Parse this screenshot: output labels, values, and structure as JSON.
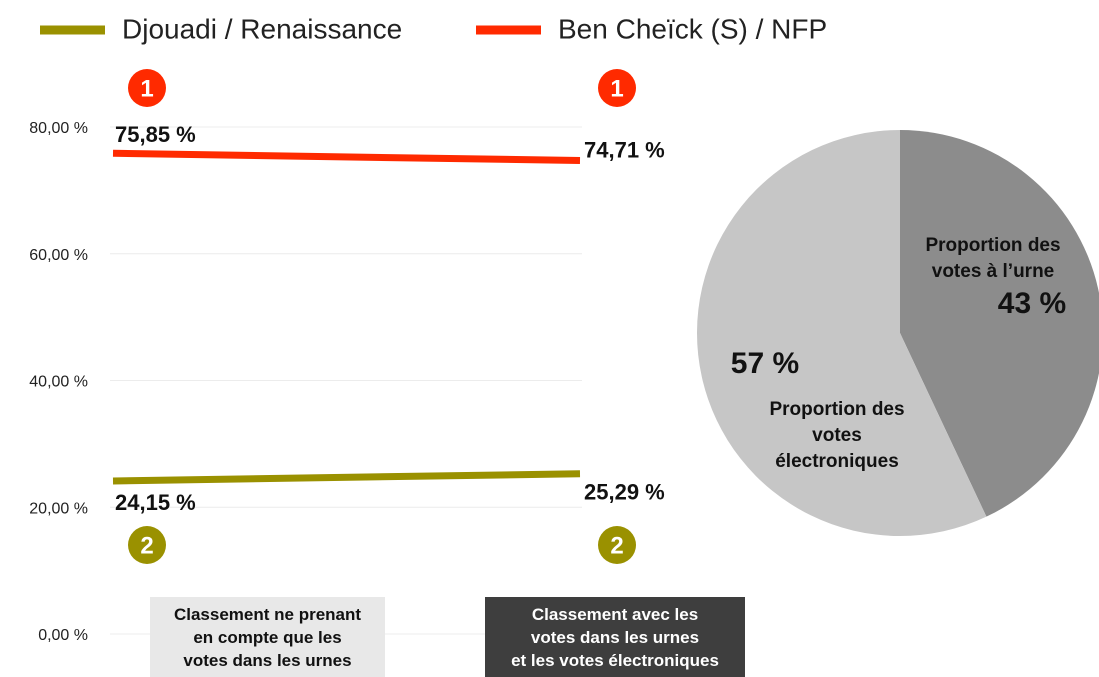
{
  "chart_data": [
    {
      "type": "line",
      "categories": [
        "Classement ne prenant\nen compte que les\nvotes dans les urnes",
        "Classement avec les\nvotes dans les urnes\net les votes électroniques"
      ],
      "series": [
        {
          "name": "Djouadi / Renaissance",
          "color": "#9a9100",
          "values": [
            24.15,
            25.29
          ],
          "value_labels": [
            "24,15 %",
            "25,29 %"
          ],
          "ranks": [
            2,
            2
          ]
        },
        {
          "name": "Ben Cheïck (S) / NFP",
          "color": "#ff2a00",
          "values": [
            75.85,
            74.71
          ],
          "value_labels": [
            "75,85 %",
            "74,71 %"
          ],
          "ranks": [
            1,
            1
          ]
        }
      ],
      "ylim": [
        0,
        80
      ],
      "yticks": [
        {
          "value": 0,
          "label": "0,00 %"
        },
        {
          "value": 20,
          "label": "20,00 %"
        },
        {
          "value": 40,
          "label": "40,00 %"
        },
        {
          "value": 60,
          "label": "60,00 %"
        },
        {
          "value": 80,
          "label": "80,00 %"
        }
      ],
      "grid": true
    },
    {
      "type": "pie",
      "categories": [
        "Proportion des\nvotes à l’urne",
        "Proportion des\nvotes\nélectroniques"
      ],
      "values": [
        43,
        57
      ],
      "value_labels": [
        "43 %",
        "57 %"
      ],
      "colors": [
        "#8c8c8c",
        "#c6c6c6"
      ]
    }
  ]
}
